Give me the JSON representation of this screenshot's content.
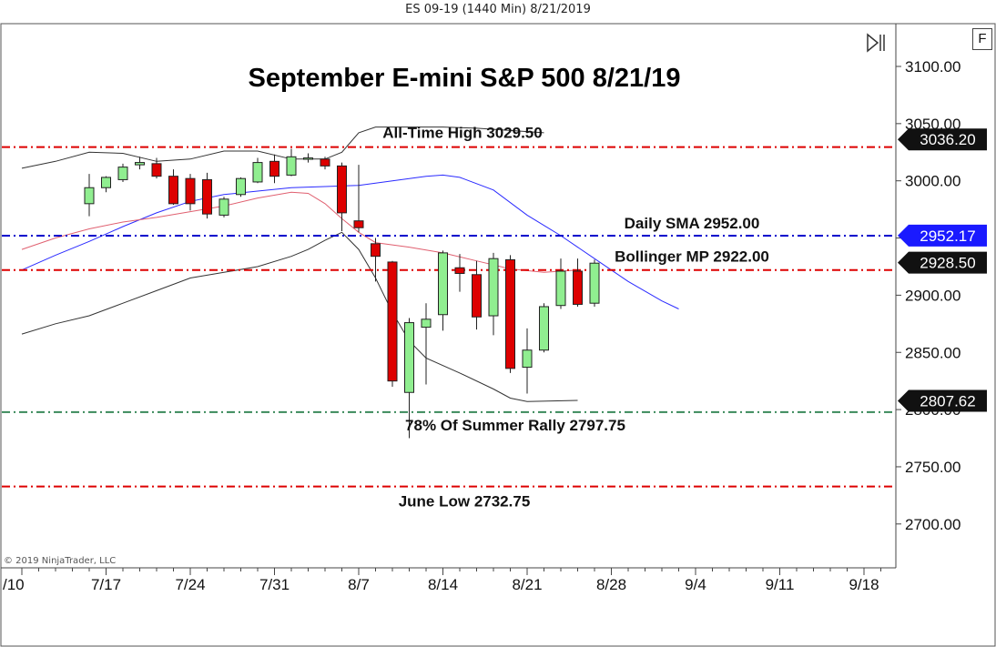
{
  "window": {
    "title": "ES 09-19 (1440 Min)  8/21/2019"
  },
  "copyright": "© 2019 NinjaTrader, LLC",
  "controls": {
    "f_button": "F",
    "scroll_icon": "scroll-to-end-icon"
  },
  "colors": {
    "up_candle": "#90ee90",
    "down_candle": "#dd0000",
    "red_line": "#dd0000",
    "blue_line": "#0000cc",
    "green_line": "#3a8a5a",
    "bollinger_band": "#333333",
    "sma": "#2b2bff",
    "bollinger_mid": "#e06070"
  },
  "chart_data": {
    "type": "candlestick",
    "title": "September E-mini S&P 500 8/21/19",
    "ylim": [
      2672,
      3135
    ],
    "y_ticks": [
      "3100.00",
      "3050.00",
      "3000.00",
      "2950.00",
      "2900.00",
      "2850.00",
      "2800.00",
      "2750.00",
      "2700.00"
    ],
    "x_ticks": [
      {
        "label": "/10",
        "i": -4
      },
      {
        "label": "7/17",
        "i": 1
      },
      {
        "label": "7/24",
        "i": 6
      },
      {
        "label": "7/31",
        "i": 11
      },
      {
        "label": "8/7",
        "i": 16
      },
      {
        "label": "8/14",
        "i": 21
      },
      {
        "label": "8/21",
        "i": 26
      },
      {
        "label": "8/28",
        "i": 31
      },
      {
        "label": "9/4",
        "i": 36
      },
      {
        "label": "9/11",
        "i": 41
      },
      {
        "label": "9/18",
        "i": 46
      }
    ],
    "candles": [
      {
        "o": 2980,
        "h": 3006,
        "l": 2969,
        "c": 2994
      },
      {
        "o": 2994,
        "h": 3004,
        "l": 2990,
        "c": 3003
      },
      {
        "o": 3001,
        "h": 3015,
        "l": 2999,
        "c": 3012
      },
      {
        "o": 3014,
        "h": 3021,
        "l": 3010,
        "c": 3016
      },
      {
        "o": 3015,
        "h": 3020,
        "l": 3002,
        "c": 3004
      },
      {
        "o": 3004,
        "h": 3010,
        "l": 2979,
        "c": 2980
      },
      {
        "o": 3002,
        "h": 3006,
        "l": 2974,
        "c": 2980
      },
      {
        "o": 3001,
        "h": 3007,
        "l": 2967,
        "c": 2971
      },
      {
        "o": 2970,
        "h": 2986,
        "l": 2968,
        "c": 2984
      },
      {
        "o": 2988,
        "h": 3003,
        "l": 2986,
        "c": 3002
      },
      {
        "o": 2999,
        "h": 3020,
        "l": 2998,
        "c": 3016
      },
      {
        "o": 3017,
        "h": 3023,
        "l": 2998,
        "c": 3004
      },
      {
        "o": 3005,
        "h": 3028,
        "l": 3004,
        "c": 3021
      },
      {
        "o": 3020,
        "h": 3024,
        "l": 3016,
        "c": 3020
      },
      {
        "o": 3019,
        "h": 3021,
        "l": 3010,
        "c": 3013
      },
      {
        "o": 3013,
        "h": 3016,
        "l": 2956,
        "c": 2972
      },
      {
        "o": 2965,
        "h": 3014,
        "l": 2955,
        "c": 2959
      },
      {
        "o": 2945,
        "h": 2950,
        "l": 2912,
        "c": 2934
      },
      {
        "o": 2929,
        "h": 2930,
        "l": 2820,
        "c": 2825
      },
      {
        "o": 2815,
        "h": 2880,
        "l": 2775,
        "c": 2876
      },
      {
        "o": 2872,
        "h": 2893,
        "l": 2822,
        "c": 2879
      },
      {
        "o": 2883,
        "h": 2939,
        "l": 2869,
        "c": 2937
      },
      {
        "o": 2924,
        "h": 2936,
        "l": 2903,
        "c": 2919
      },
      {
        "o": 2918,
        "h": 2930,
        "l": 2870,
        "c": 2881
      },
      {
        "o": 2882,
        "h": 2937,
        "l": 2865,
        "c": 2932
      },
      {
        "o": 2931,
        "h": 2935,
        "l": 2832,
        "c": 2836
      },
      {
        "o": 2837,
        "h": 2871,
        "l": 2814,
        "c": 2852
      },
      {
        "o": 2852,
        "h": 2893,
        "l": 2850,
        "c": 2890
      },
      {
        "o": 2891,
        "h": 2932,
        "l": 2888,
        "c": 2921
      },
      {
        "o": 2921,
        "h": 2932,
        "l": 2890,
        "c": 2892
      },
      {
        "o": 2893,
        "h": 2931,
        "l": 2890,
        "c": 2928
      }
    ],
    "lines": {
      "bollinger_upper": [
        [
          -4,
          3011
        ],
        [
          -2,
          3017
        ],
        [
          0,
          3025
        ],
        [
          2,
          3024
        ],
        [
          4,
          3017
        ],
        [
          6,
          3019
        ],
        [
          8,
          3026
        ],
        [
          10,
          3026
        ],
        [
          12,
          3019
        ],
        [
          14,
          3019
        ],
        [
          15,
          3025
        ],
        [
          16,
          3042
        ],
        [
          17,
          3047
        ],
        [
          19,
          3047
        ],
        [
          21,
          3047
        ],
        [
          23,
          3046
        ],
        [
          25,
          3044
        ],
        [
          27,
          3042
        ]
      ],
      "bollinger_lower": [
        [
          -4,
          2866
        ],
        [
          -2,
          2875
        ],
        [
          0,
          2882
        ],
        [
          2,
          2893
        ],
        [
          4,
          2904
        ],
        [
          6,
          2915
        ],
        [
          8,
          2920
        ],
        [
          10,
          2925
        ],
        [
          12,
          2934
        ],
        [
          13,
          2940
        ],
        [
          14,
          2948
        ],
        [
          15,
          2955
        ],
        [
          16,
          2940
        ],
        [
          17,
          2915
        ],
        [
          18,
          2885
        ],
        [
          19,
          2860
        ],
        [
          20,
          2845
        ],
        [
          22,
          2832
        ],
        [
          24,
          2818
        ],
        [
          25,
          2810
        ],
        [
          26,
          2807
        ],
        [
          29,
          2808
        ]
      ],
      "sma": [
        [
          -4,
          2922
        ],
        [
          -2,
          2935
        ],
        [
          0,
          2947
        ],
        [
          2,
          2960
        ],
        [
          4,
          2972
        ],
        [
          6,
          2982
        ],
        [
          8,
          2988
        ],
        [
          10,
          2991
        ],
        [
          12,
          2994
        ],
        [
          14,
          2995
        ],
        [
          16,
          2996
        ],
        [
          18,
          3000
        ],
        [
          20,
          3004
        ],
        [
          21,
          3005
        ],
        [
          22,
          3003
        ],
        [
          24,
          2992
        ],
        [
          26,
          2970
        ],
        [
          28,
          2952
        ],
        [
          30,
          2932
        ],
        [
          32,
          2912
        ],
        [
          34,
          2895
        ],
        [
          35,
          2888
        ]
      ],
      "bollinger_mid": [
        [
          -4,
          2940
        ],
        [
          -2,
          2950
        ],
        [
          0,
          2958
        ],
        [
          2,
          2964
        ],
        [
          4,
          2968
        ],
        [
          6,
          2973
        ],
        [
          8,
          2978
        ],
        [
          10,
          2985
        ],
        [
          12,
          2990
        ],
        [
          13,
          2989
        ],
        [
          14,
          2980
        ],
        [
          15,
          2967
        ],
        [
          16,
          2955
        ],
        [
          17,
          2946
        ],
        [
          19,
          2942
        ],
        [
          21,
          2937
        ],
        [
          23,
          2930
        ],
        [
          25,
          2923
        ],
        [
          27,
          2920
        ],
        [
          29,
          2922
        ]
      ]
    },
    "hlines": [
      {
        "y": 3029.5,
        "style": "red",
        "label": "All-Time High 3029.50"
      },
      {
        "y": 2952.0,
        "style": "blue",
        "label": "Daily SMA 2952.00"
      },
      {
        "y": 2922.0,
        "style": "red",
        "label": "Bollinger MP 2922.00"
      },
      {
        "y": 2797.75,
        "style": "green",
        "label": "78% Of Summer Rally 2797.75"
      },
      {
        "y": 2732.75,
        "style": "red",
        "label": "June Low 2732.75"
      }
    ],
    "price_tags": [
      {
        "value": 3036.2,
        "text": "3036.20",
        "color": "#111111"
      },
      {
        "value": 2952.17,
        "text": "2952.17",
        "color": "#1a1aff"
      },
      {
        "value": 2928.5,
        "text": "2928.50",
        "color": "#111111"
      },
      {
        "value": 2807.62,
        "text": "2807.62",
        "color": "#111111"
      }
    ]
  }
}
